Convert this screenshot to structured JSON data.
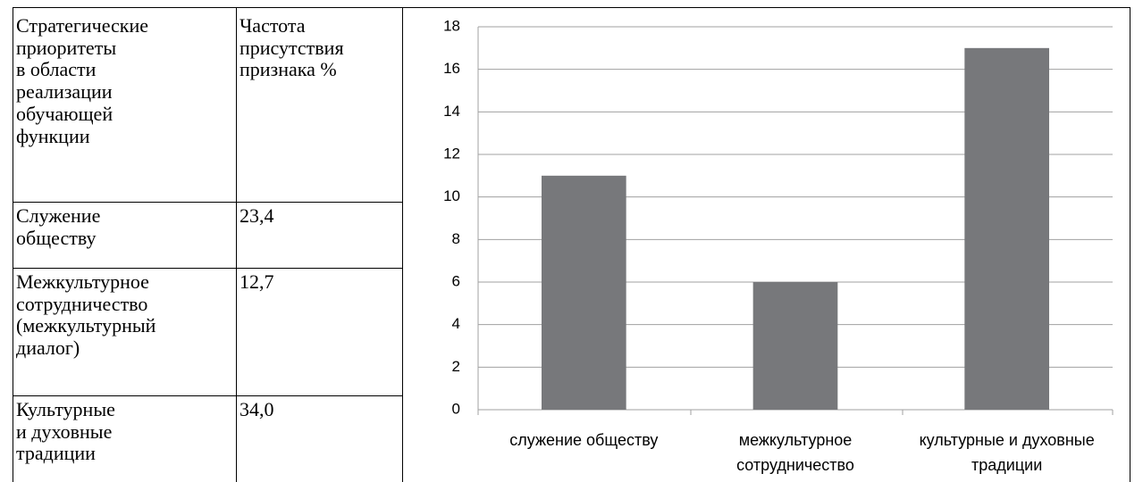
{
  "table": {
    "header": [
      [
        "Стратегические",
        "приоритеты",
        "в области",
        "реализации",
        "обучающей",
        "функции"
      ],
      [
        "Частота",
        "присутствия",
        "признака %"
      ]
    ],
    "rows": [
      [
        [
          "Служение",
          "обществу"
        ],
        [
          "23,4"
        ]
      ],
      [
        [
          "Межкультурное",
          "сотрудничество",
          "(межкультурный",
          "диалог)"
        ],
        [
          "12,7"
        ]
      ],
      [
        [
          "Культурные",
          "и духовные",
          "традиции"
        ],
        [
          "34,0"
        ]
      ]
    ]
  },
  "chart_data": {
    "type": "bar",
    "categories": [
      "служение обществу",
      "межкультурное сотрудничество",
      "культурные и духовные традиции"
    ],
    "values": [
      11,
      6,
      17
    ],
    "color": "#77787b",
    "ylim": [
      0,
      18
    ],
    "yticks": [
      0,
      2,
      4,
      6,
      8,
      10,
      12,
      14,
      16,
      18
    ],
    "grid": true
  }
}
